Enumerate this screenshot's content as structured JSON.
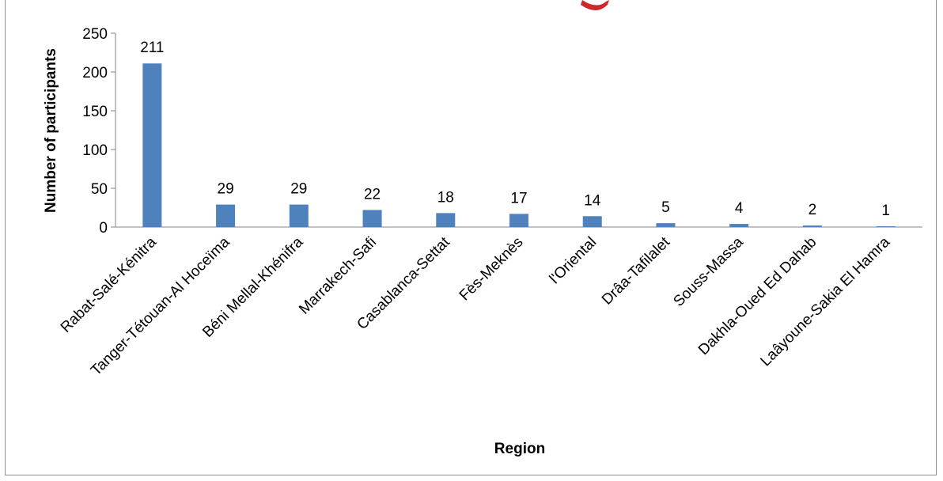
{
  "chart_data": {
    "type": "bar",
    "title": "",
    "xlabel": "Region",
    "ylabel": "Number of participants",
    "categories": [
      "Rabat-Salé-Kénitra",
      "Tanger-Tétouan-Al Hoceïma",
      "Béni Mellal-Khénifra",
      "Marrakech-Safi",
      "Casablanca-Settat",
      "Fès-Meknès",
      "l'Oriental",
      "Drâa-Tafilalet",
      "Souss-Massa",
      "Dakhla-Oued Ed Dahab",
      "Laâyoune-Sakia El Hamra"
    ],
    "values": [
      211,
      29,
      29,
      22,
      18,
      17,
      14,
      5,
      4,
      2,
      1
    ],
    "data_labels": [
      "211",
      "29",
      "29",
      "22",
      "18",
      "17",
      "14",
      "5",
      "4",
      "2",
      "1"
    ],
    "ylim": [
      0,
      250
    ],
    "yticks": [
      0,
      50,
      100,
      150,
      200,
      250
    ],
    "ytick_labels": [
      "0",
      "50",
      "100",
      "150",
      "200",
      "250"
    ],
    "grid": false,
    "legend": "none",
    "bar_color": "#4f81bd"
  }
}
